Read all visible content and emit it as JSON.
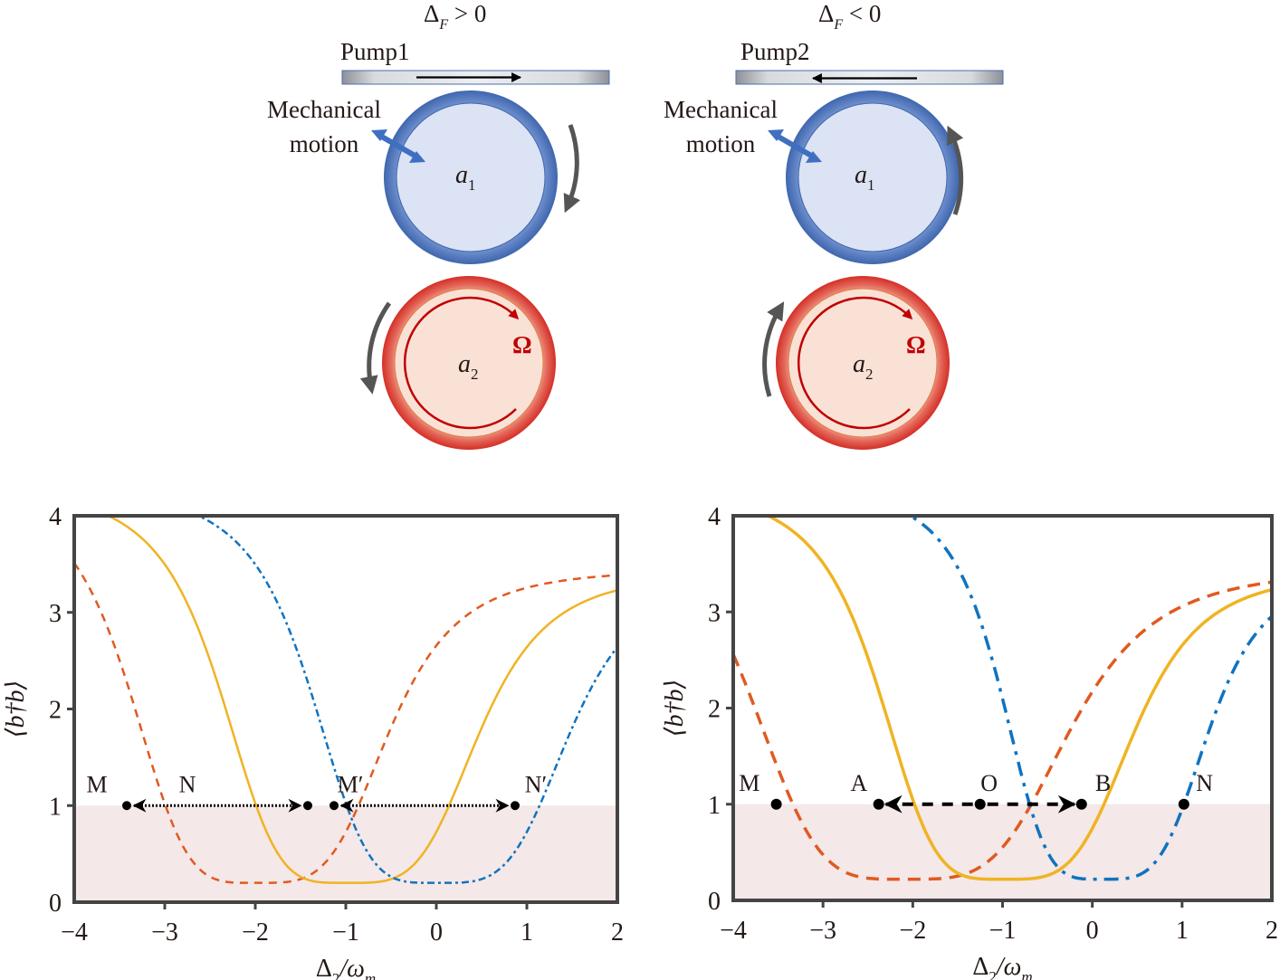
{
  "schematic": {
    "panels": [
      {
        "condition": "Δ_F > 0",
        "condition_main": "Δ",
        "condition_sub": "F",
        "condition_rel": " > 0",
        "pump_label": "Pump1",
        "pump_direction": "right",
        "mech_label_line1": "Mechanical",
        "mech_label_line2": "motion",
        "ring1_label": "a",
        "ring1_sub": "1",
        "ring2_label": "a",
        "ring2_sub": "2",
        "ring1_rotation": "clockwise",
        "ring2_rotation": "counterclockwise",
        "omega_label": "Ω"
      },
      {
        "condition": "Δ_F < 0",
        "condition_main": "Δ",
        "condition_sub": "F",
        "condition_rel": " < 0",
        "pump_label": "Pump2",
        "pump_direction": "left",
        "mech_label_line1": "Mechanical",
        "mech_label_line2": "motion",
        "ring1_label": "a",
        "ring1_sub": "1",
        "ring2_label": "a",
        "ring2_sub": "2",
        "ring1_rotation": "counterclockwise",
        "ring2_rotation": "clockwise",
        "omega_label": "Ω"
      }
    ],
    "colors": {
      "ring1_fill": "#dbe3f4",
      "ring1_edge": "#4a72b8",
      "ring2_fill": "#f9e1d6",
      "ring2_edge": "#d9342b",
      "omega": "#c00000",
      "rotation_arrow": "#555555",
      "mech_arrow": "#3f6fc1"
    }
  },
  "chart_data": [
    {
      "type": "line",
      "title": "",
      "xlabel": "Δ2/ωm",
      "xlabel_main": "Δ",
      "xlabel_sub": "2",
      "xlabel_mid": "/ω",
      "xlabel_sub2": "m",
      "ylabel": "⟨b†b⟩",
      "xlim": [
        -4,
        2
      ],
      "ylim": [
        0,
        4
      ],
      "xticks": [
        -4,
        -3,
        -2,
        -1,
        0,
        1,
        2
      ],
      "xtick_labels": [
        "−4",
        "−3",
        "−2",
        "−1",
        "0",
        "1",
        "2"
      ],
      "yticks": [
        0,
        1,
        2,
        3,
        4
      ],
      "ytick_labels": [
        "0",
        "1",
        "2",
        "3",
        "4"
      ],
      "grid": false,
      "shaded_region": {
        "y_from": 0,
        "y_to": 1,
        "color": "#f4e8e8"
      },
      "series": [
        {
          "name": "orange-dashed",
          "style": "dashed",
          "color": "#e05a20",
          "center": -2.0,
          "min": 0.2,
          "plateau": 3.45,
          "halfwidth_at_1": 1.14
        },
        {
          "name": "yellow-solid",
          "style": "solid",
          "color": "#f0b323",
          "center": -1.0,
          "min": 0.2,
          "plateau": 3.42,
          "halfwidth_at_1": 1.14
        },
        {
          "name": "blue-dashdot",
          "style": "dashdot",
          "color": "#0f73c0",
          "center": 0.0,
          "min": 0.2,
          "plateau": 3.42,
          "halfwidth_at_1": 1.14
        }
      ],
      "points": [
        {
          "label": "M",
          "x": -3.42,
          "y": 1
        },
        {
          "label": "N",
          "x": -1.42,
          "y": 1
        },
        {
          "label": "M′",
          "x": -1.13,
          "y": 1
        },
        {
          "label": "N′",
          "x": 0.87,
          "y": 1
        }
      ],
      "point_labels": [
        {
          "text": "M",
          "x": -3.75,
          "y": 1.12
        },
        {
          "text": "N",
          "x": -2.75,
          "y": 1.12
        },
        {
          "text": "M′",
          "x": -0.95,
          "y": 1.12
        },
        {
          "text": "N′",
          "x": 1.1,
          "y": 1.12
        }
      ],
      "arrows": [
        {
          "from": -3.42,
          "to": -1.42,
          "y": 1,
          "style": "dotted",
          "heads": "both"
        },
        {
          "from": -1.13,
          "to": 0.87,
          "y": 1,
          "style": "dotted",
          "heads": "both"
        }
      ]
    },
    {
      "type": "line",
      "title": "",
      "xlabel": "Δ2/ωm",
      "xlabel_main": "Δ",
      "xlabel_sub": "2",
      "xlabel_mid": "/ω",
      "xlabel_sub2": "m",
      "ylabel": "⟨b†b⟩",
      "xlim": [
        -4,
        2
      ],
      "ylim": [
        0,
        4
      ],
      "xticks": [
        -4,
        -3,
        -2,
        -1,
        0,
        1,
        2
      ],
      "xtick_labels": [
        "−4",
        "−3",
        "−2",
        "−1",
        "0",
        "1",
        "2"
      ],
      "yticks": [
        0,
        1,
        2,
        3,
        4
      ],
      "ytick_labels": [
        "0",
        "1",
        "2",
        "3",
        "4"
      ],
      "grid": false,
      "shaded_region": {
        "y_from": 0,
        "y_to": 1,
        "color": "#f4e8e8"
      },
      "series": [
        {
          "name": "orange-dashed",
          "style": "dashed",
          "color": "#e05a20",
          "center": -2.1,
          "min": 0.22,
          "plateau": 3.45,
          "halfwidth_at_1": 1.42
        },
        {
          "name": "yellow-solid",
          "style": "solid",
          "color": "#f0b323",
          "center": -1.0,
          "min": 0.22,
          "plateau": 3.42,
          "halfwidth_at_1": 1.13
        },
        {
          "name": "blue-dashdot",
          "style": "dashdot",
          "color": "#0f73c0",
          "center": 0.1,
          "min": 0.22,
          "plateau": 3.42,
          "halfwidth_at_1": 0.92
        }
      ],
      "points": [
        {
          "label": "M",
          "x": -3.52,
          "y": 1
        },
        {
          "label": "A",
          "x": -2.38,
          "y": 1
        },
        {
          "label": "O",
          "x": -1.25,
          "y": 1
        },
        {
          "label": "B",
          "x": -0.12,
          "y": 1
        },
        {
          "label": "N",
          "x": 1.02,
          "y": 1
        }
      ],
      "point_labels": [
        {
          "text": "M",
          "x": -3.82,
          "y": 1.12
        },
        {
          "text": "A",
          "x": -2.6,
          "y": 1.12
        },
        {
          "text": "O",
          "x": -1.15,
          "y": 1.12
        },
        {
          "text": "B",
          "x": 0.12,
          "y": 1.12
        },
        {
          "text": "N",
          "x": 1.25,
          "y": 1.12
        }
      ],
      "arrows": [
        {
          "from": -1.25,
          "to": -2.38,
          "y": 1,
          "style": "dashed",
          "heads": "end"
        },
        {
          "from": -1.25,
          "to": -0.12,
          "y": 1,
          "style": "dashed",
          "heads": "end"
        }
      ]
    }
  ]
}
